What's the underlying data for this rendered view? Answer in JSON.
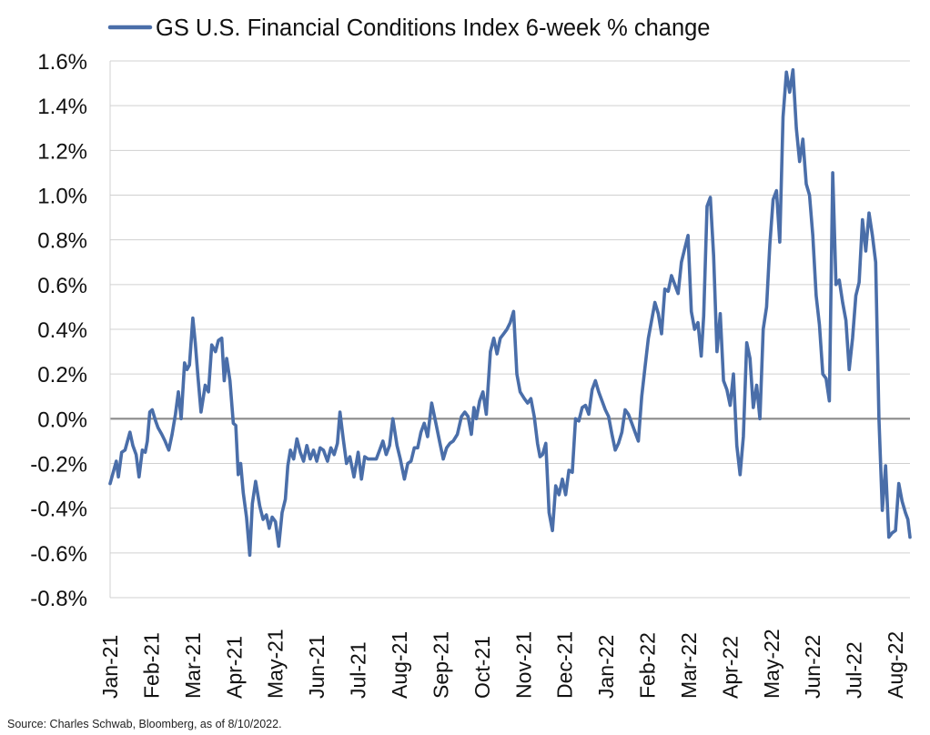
{
  "chart_data": {
    "type": "line",
    "title": "",
    "xlabel": "",
    "ylabel": "",
    "ylim": [
      -0.8,
      1.6
    ],
    "y_ticks": [
      -0.8,
      -0.6,
      -0.4,
      -0.2,
      0.0,
      0.2,
      0.4,
      0.6,
      0.8,
      1.0,
      1.2,
      1.4,
      1.6
    ],
    "y_tick_labels": [
      "-0.8%",
      "-0.6%",
      "-0.4%",
      "-0.2%",
      "0.0%",
      "0.2%",
      "0.4%",
      "0.6%",
      "0.8%",
      "1.0%",
      "1.2%",
      "1.4%",
      "1.6%"
    ],
    "x_tick_labels": [
      "Jan-21",
      "Feb-21",
      "Mar-21",
      "Apr-21",
      "May-21",
      "Jun-21",
      "Jul-21",
      "Aug-21",
      "Sep-21",
      "Oct-21",
      "Nov-21",
      "Dec-21",
      "Jan-22",
      "Feb-22",
      "Mar-22",
      "Apr-22",
      "May-22",
      "Jun-22",
      "Jul-22",
      "Aug-22"
    ],
    "x_month_range": [
      0,
      19.35
    ],
    "grid": true,
    "legend": "top-left",
    "series": [
      {
        "name": "GS U.S. Financial Conditions Index 6-week % change",
        "color": "#4a6ea9",
        "x": [
          0,
          0.06,
          0.15,
          0.2,
          0.28,
          0.36,
          0.48,
          0.55,
          0.63,
          0.7,
          0.78,
          0.85,
          0.9,
          0.96,
          1.02,
          1.1,
          1.16,
          1.25,
          1.33,
          1.42,
          1.5,
          1.58,
          1.65,
          1.72,
          1.8,
          1.86,
          1.92,
          2.0,
          2.06,
          2.12,
          2.2,
          2.3,
          2.38,
          2.46,
          2.55,
          2.62,
          2.7,
          2.76,
          2.82,
          2.9,
          2.98,
          3.04,
          3.1,
          3.16,
          3.22,
          3.3,
          3.38,
          3.44,
          3.52,
          3.62,
          3.7,
          3.78,
          3.85,
          3.92,
          4.0,
          4.08,
          4.16,
          4.24,
          4.3,
          4.36,
          4.44,
          4.52,
          4.6,
          4.68,
          4.76,
          4.84,
          4.92,
          5.0,
          5.08,
          5.16,
          5.26,
          5.34,
          5.42,
          5.5,
          5.56,
          5.64,
          5.72,
          5.8,
          5.9,
          6.0,
          6.08,
          6.16,
          6.24,
          6.34,
          6.44,
          6.52,
          6.6,
          6.68,
          6.76,
          6.84,
          6.94,
          7.02,
          7.12,
          7.2,
          7.28,
          7.36,
          7.44,
          7.52,
          7.6,
          7.68,
          7.78,
          7.88,
          7.98,
          8.06,
          8.14,
          8.22,
          8.3,
          8.4,
          8.5,
          8.58,
          8.66,
          8.74,
          8.8,
          8.86,
          8.94,
          9.02,
          9.1,
          9.2,
          9.28,
          9.36,
          9.44,
          9.52,
          9.6,
          9.68,
          9.76,
          9.84,
          9.92,
          10.02,
          10.1,
          10.18,
          10.26,
          10.34,
          10.4,
          10.46,
          10.54,
          10.62,
          10.7,
          10.78,
          10.86,
          10.94,
          11.02,
          11.1,
          11.18,
          11.26,
          11.34,
          11.42,
          11.5,
          11.58,
          11.66,
          11.74,
          11.82,
          11.9,
          11.98,
          12.06,
          12.14,
          12.22,
          12.3,
          12.38,
          12.46,
          12.54,
          12.62,
          12.7,
          12.78,
          12.86,
          12.94,
          13.02,
          13.1,
          13.18,
          13.26,
          13.34,
          13.42,
          13.5,
          13.58,
          13.66,
          13.74,
          13.82,
          13.9,
          13.98,
          14.06,
          14.14,
          14.22,
          14.3,
          14.36,
          14.44,
          14.52,
          14.6,
          14.68,
          14.76,
          14.84,
          14.92,
          15.0,
          15.08,
          15.16,
          15.24,
          15.32,
          15.4,
          15.48,
          15.56,
          15.64,
          15.72,
          15.8,
          15.88,
          15.96,
          16.04,
          16.12,
          16.2,
          16.28,
          16.36,
          16.44,
          16.52,
          16.6,
          16.68,
          16.76,
          16.84,
          16.92,
          17.0,
          17.08,
          17.16,
          17.24,
          17.32,
          17.4,
          17.48,
          17.56,
          17.64,
          17.72,
          17.8,
          17.88,
          17.96,
          18.04,
          18.12,
          18.2,
          18.28,
          18.36,
          18.44,
          18.52,
          18.6,
          18.68,
          18.76,
          18.84,
          18.92,
          19.0,
          19.08,
          19.16,
          19.24,
          19.3,
          19.35
        ],
        "values": [
          -0.29,
          -0.25,
          -0.19,
          -0.26,
          -0.15,
          -0.14,
          -0.06,
          -0.12,
          -0.16,
          -0.26,
          -0.14,
          -0.15,
          -0.1,
          0.03,
          0.04,
          -0.01,
          -0.04,
          -0.07,
          -0.1,
          -0.14,
          -0.07,
          0.02,
          0.12,
          0.0,
          0.25,
          0.22,
          0.24,
          0.45,
          0.34,
          0.2,
          0.03,
          0.15,
          0.12,
          0.33,
          0.3,
          0.35,
          0.36,
          0.17,
          0.27,
          0.17,
          -0.02,
          -0.03,
          -0.25,
          -0.2,
          -0.33,
          -0.44,
          -0.61,
          -0.38,
          -0.28,
          -0.39,
          -0.45,
          -0.43,
          -0.49,
          -0.44,
          -0.46,
          -0.57,
          -0.42,
          -0.36,
          -0.21,
          -0.14,
          -0.18,
          -0.09,
          -0.15,
          -0.19,
          -0.12,
          -0.18,
          -0.14,
          -0.19,
          -0.13,
          -0.14,
          -0.19,
          -0.13,
          -0.16,
          -0.11,
          0.03,
          -0.09,
          -0.2,
          -0.17,
          -0.26,
          -0.15,
          -0.27,
          -0.17,
          -0.18,
          -0.18,
          -0.18,
          -0.14,
          -0.1,
          -0.16,
          -0.12,
          0.0,
          -0.12,
          -0.18,
          -0.27,
          -0.2,
          -0.19,
          -0.13,
          -0.13,
          -0.06,
          -0.02,
          -0.08,
          0.07,
          -0.02,
          -0.11,
          -0.18,
          -0.13,
          -0.11,
          -0.1,
          -0.07,
          0.01,
          0.03,
          0.01,
          -0.07,
          0.05,
          0.0,
          0.08,
          0.12,
          0.02,
          0.3,
          0.36,
          0.29,
          0.36,
          0.38,
          0.4,
          0.43,
          0.48,
          0.2,
          0.12,
          0.09,
          0.07,
          0.09,
          0.01,
          -0.11,
          -0.17,
          -0.16,
          -0.11,
          -0.42,
          -0.5,
          -0.3,
          -0.34,
          -0.27,
          -0.34,
          -0.23,
          -0.24,
          0.0,
          -0.01,
          0.05,
          0.06,
          0.02,
          0.13,
          0.17,
          0.12,
          0.08,
          0.04,
          0.01,
          -0.07,
          -0.14,
          -0.11,
          -0.06,
          0.04,
          0.02,
          -0.02,
          -0.06,
          -0.1,
          0.1,
          0.23,
          0.36,
          0.44,
          0.52,
          0.47,
          0.38,
          0.58,
          0.57,
          0.64,
          0.6,
          0.56,
          0.7,
          0.76,
          0.82,
          0.48,
          0.4,
          0.43,
          0.28,
          0.46,
          0.95,
          0.99,
          0.73,
          0.3,
          0.47,
          0.17,
          0.13,
          0.06,
          0.2,
          -0.12,
          -0.25,
          -0.08,
          0.34,
          0.27,
          0.05,
          0.15,
          0.0,
          0.4,
          0.5,
          0.78,
          0.98,
          1.02,
          0.79,
          1.35,
          1.55,
          1.46,
          1.56,
          1.3,
          1.15,
          1.25,
          1.05,
          1.0,
          0.82,
          0.55,
          0.42,
          0.2,
          0.18,
          0.08,
          1.1,
          0.6,
          0.62,
          0.52,
          0.44,
          0.22,
          0.36,
          0.55,
          0.61,
          0.89,
          0.75,
          0.92,
          0.82,
          0.7,
          0.0,
          -0.41,
          -0.21,
          -0.53,
          -0.51,
          -0.5,
          -0.29,
          -0.37,
          -0.42,
          -0.45,
          -0.53
        ]
      }
    ]
  },
  "legend_label": "GS U.S. Financial Conditions Index 6-week % change",
  "source_note": "Source: Charles Schwab, Bloomberg, as of 8/10/2022."
}
